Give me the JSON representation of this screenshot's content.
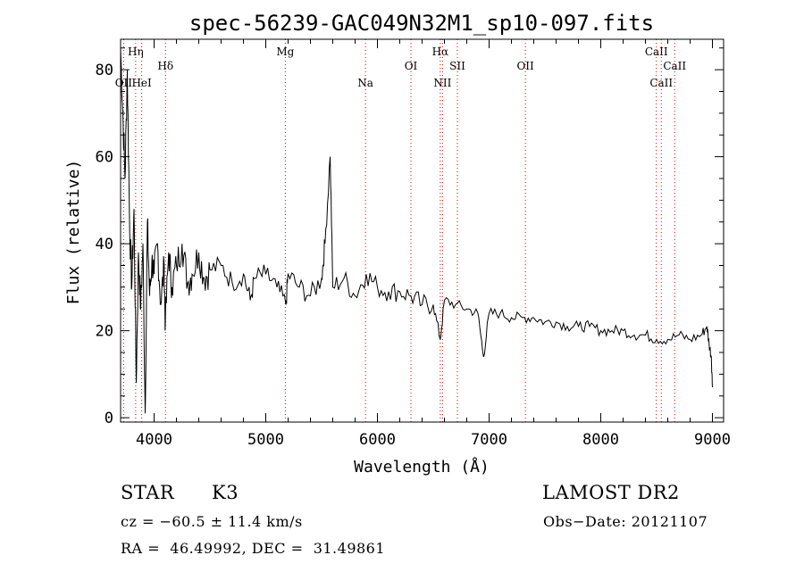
{
  "chart_data": {
    "type": "line",
    "title": "spec-56239-GAC049N32M1_sp10-097.fits",
    "xlabel": "Wavelength (Å)",
    "ylabel": "Flux (relative)",
    "xlim": [
      3700,
      9100
    ],
    "ylim": [
      -1,
      87
    ],
    "xticks": [
      4000,
      5000,
      6000,
      7000,
      8000,
      9000
    ],
    "yticks": [
      0,
      20,
      40,
      60,
      80
    ],
    "line_color": "#000000",
    "marker_color": "#cc0000",
    "series": [
      {
        "x": [
          3700,
          3720,
          3740,
          3760,
          3780,
          3800,
          3820,
          3840,
          3860,
          3880,
          3900,
          3920,
          3940,
          3960,
          3980,
          4000,
          4030,
          4060,
          4090,
          4100,
          4130,
          4160,
          4200,
          4250,
          4300,
          4340,
          4400,
          4450,
          4500,
          4600,
          4700,
          4800,
          4861,
          4900,
          5000,
          5100,
          5180,
          5200,
          5300,
          5400,
          5500,
          5530,
          5577,
          5600,
          5700,
          5800,
          5900,
          6000,
          6100,
          6200,
          6300,
          6400,
          6500,
          6563,
          6600,
          6700,
          6800,
          6900,
          6950,
          7000,
          7100,
          7200,
          7300,
          7400,
          7500,
          7600,
          7700,
          7800,
          7900,
          8000,
          8100,
          8200,
          8300,
          8400,
          8500,
          8600,
          8700,
          8800,
          8900,
          8950,
          8970,
          8990,
          9000
        ],
        "y": [
          85,
          70,
          55,
          80,
          45,
          30,
          48,
          8,
          38,
          25,
          40,
          1,
          45,
          28,
          36,
          33,
          40,
          26,
          35,
          21,
          38,
          30,
          35,
          40,
          31,
          33,
          38,
          32,
          34,
          35,
          31,
          33,
          27,
          32,
          33,
          30,
          26,
          33,
          30,
          28,
          32,
          40,
          60,
          30,
          32,
          28,
          33,
          30,
          29,
          29,
          28,
          26,
          26,
          18,
          27,
          26,
          25,
          24,
          14,
          24,
          24,
          23,
          23,
          23,
          22,
          22,
          21,
          21,
          21,
          20,
          20,
          20,
          19,
          19,
          18,
          18,
          19,
          18,
          19,
          21,
          17,
          14,
          7
        ]
      }
    ],
    "lines": [
      {
        "label": "OII",
        "x": 3727,
        "row": 2
      },
      {
        "label": "Hη",
        "x": 3835,
        "row": 0
      },
      {
        "label": "HeI",
        "x": 3889,
        "row": 2
      },
      {
        "label": "Hδ",
        "x": 4102,
        "row": 1
      },
      {
        "label": "Mg",
        "x": 5175,
        "row": 0
      },
      {
        "label": "Na",
        "x": 5893,
        "row": 2
      },
      {
        "label": "OI",
        "x": 6300,
        "row": 1
      },
      {
        "label": "Hα",
        "x": 6563,
        "row": 0
      },
      {
        "label": "NII",
        "x": 6583,
        "row": 2
      },
      {
        "label": "SII",
        "x": 6716,
        "row": 1
      },
      {
        "label": "OII",
        "x": 7325,
        "row": 1
      },
      {
        "label": "CaII",
        "x": 8498,
        "row": 0
      },
      {
        "label": "CaII",
        "x": 8542,
        "row": 2
      },
      {
        "label": "CaII",
        "x": 8662,
        "row": 1
      }
    ]
  },
  "info": {
    "object_class": "STAR",
    "subclass": "K3",
    "survey": "LAMOST DR2",
    "redshift": "cz = −60.5 ± 11.4 km/s",
    "obs_date": "Obs−Date: 20121107",
    "coords": "RA =  46.49992, DEC =  31.49861"
  }
}
